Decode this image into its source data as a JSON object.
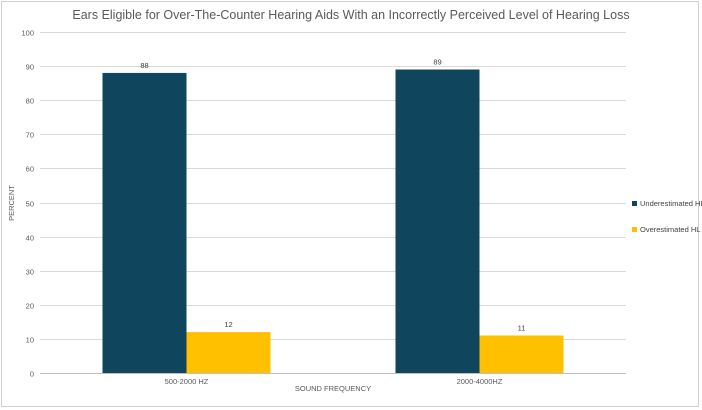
{
  "chart_data": {
    "type": "bar",
    "title": "Ears Eligible for Over-The-Counter Hearing Aids With an Incorrectly Perceived Level of Hearing Loss",
    "xlabel": "SOUND FREQUENCY",
    "ylabel": "PERCENT",
    "ylim": [
      0,
      100
    ],
    "yticks": [
      0,
      10,
      20,
      30,
      40,
      50,
      60,
      70,
      80,
      90,
      100
    ],
    "grid": true,
    "legend_position": "right",
    "categories": [
      "500-2000 HZ",
      "2000-4000HZ"
    ],
    "series": [
      {
        "name": "Underestimated HL",
        "color": "#10455e",
        "values": [
          88,
          89
        ]
      },
      {
        "name": "Overestimated HL",
        "color": "#ffc000",
        "values": [
          12,
          11
        ]
      }
    ]
  }
}
